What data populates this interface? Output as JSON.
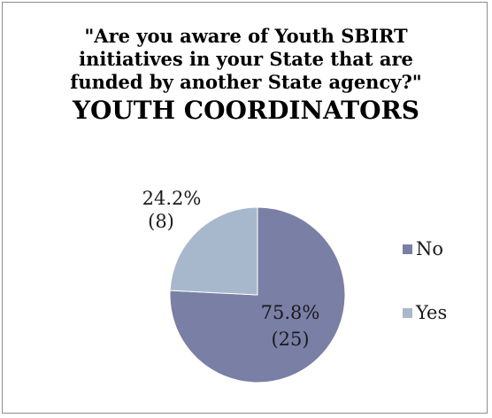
{
  "chart_data": {
    "type": "pie",
    "title_lines": [
      "\"Are you aware of Youth SBIRT",
      "initiatives in your State that are",
      "funded by another State agency?\""
    ],
    "subtitle": "YOUTH COORDINATORS",
    "slices": [
      {
        "name": "No",
        "percent": 75.8,
        "count": 25,
        "label_pct": "75.8%",
        "label_count": "(25)",
        "color": "#7a7fa6"
      },
      {
        "name": "Yes",
        "percent": 24.2,
        "count": 8,
        "label_pct": "24.2%",
        "label_count": "(8)",
        "color": "#a8b8cc"
      }
    ],
    "legend_position": "right"
  }
}
